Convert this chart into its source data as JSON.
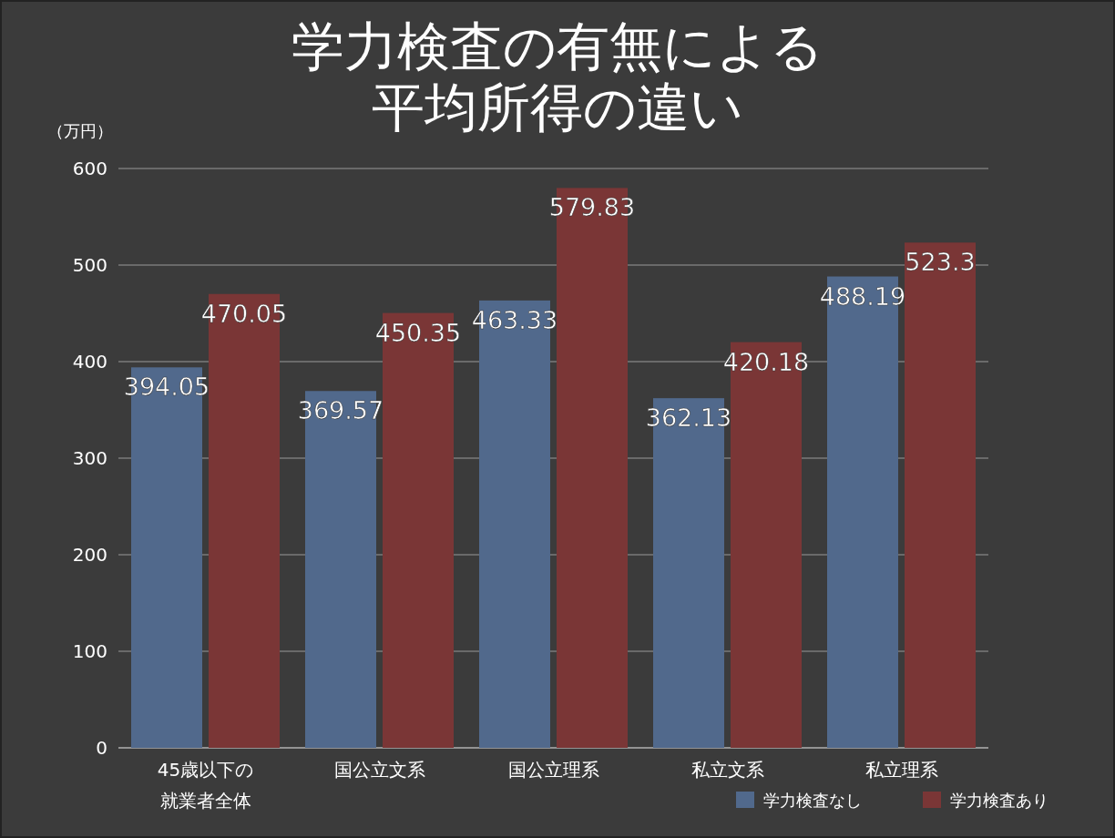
{
  "chart_data": {
    "type": "bar",
    "title": "学力検査の有無による平均所得の違い",
    "ylabel": "（万円）",
    "categories": [
      "45歳以下の就業者全体",
      "国公立文系",
      "国公立理系",
      "私立文系",
      "私立理系"
    ],
    "series": [
      {
        "name": "学力検査なし",
        "color": "#51698c",
        "values": [
          394.05,
          369.57,
          463.33,
          362.13,
          488.19
        ]
      },
      {
        "name": "学力検査あり",
        "color": "#7a3636",
        "values": [
          470.05,
          450.35,
          579.83,
          420.18,
          523.3
        ]
      }
    ],
    "ylim": [
      0,
      600
    ],
    "yticks": [
      0,
      100,
      200,
      300,
      400,
      500,
      600
    ],
    "grid": "y",
    "legend": "bottom right",
    "data_labels": true
  }
}
